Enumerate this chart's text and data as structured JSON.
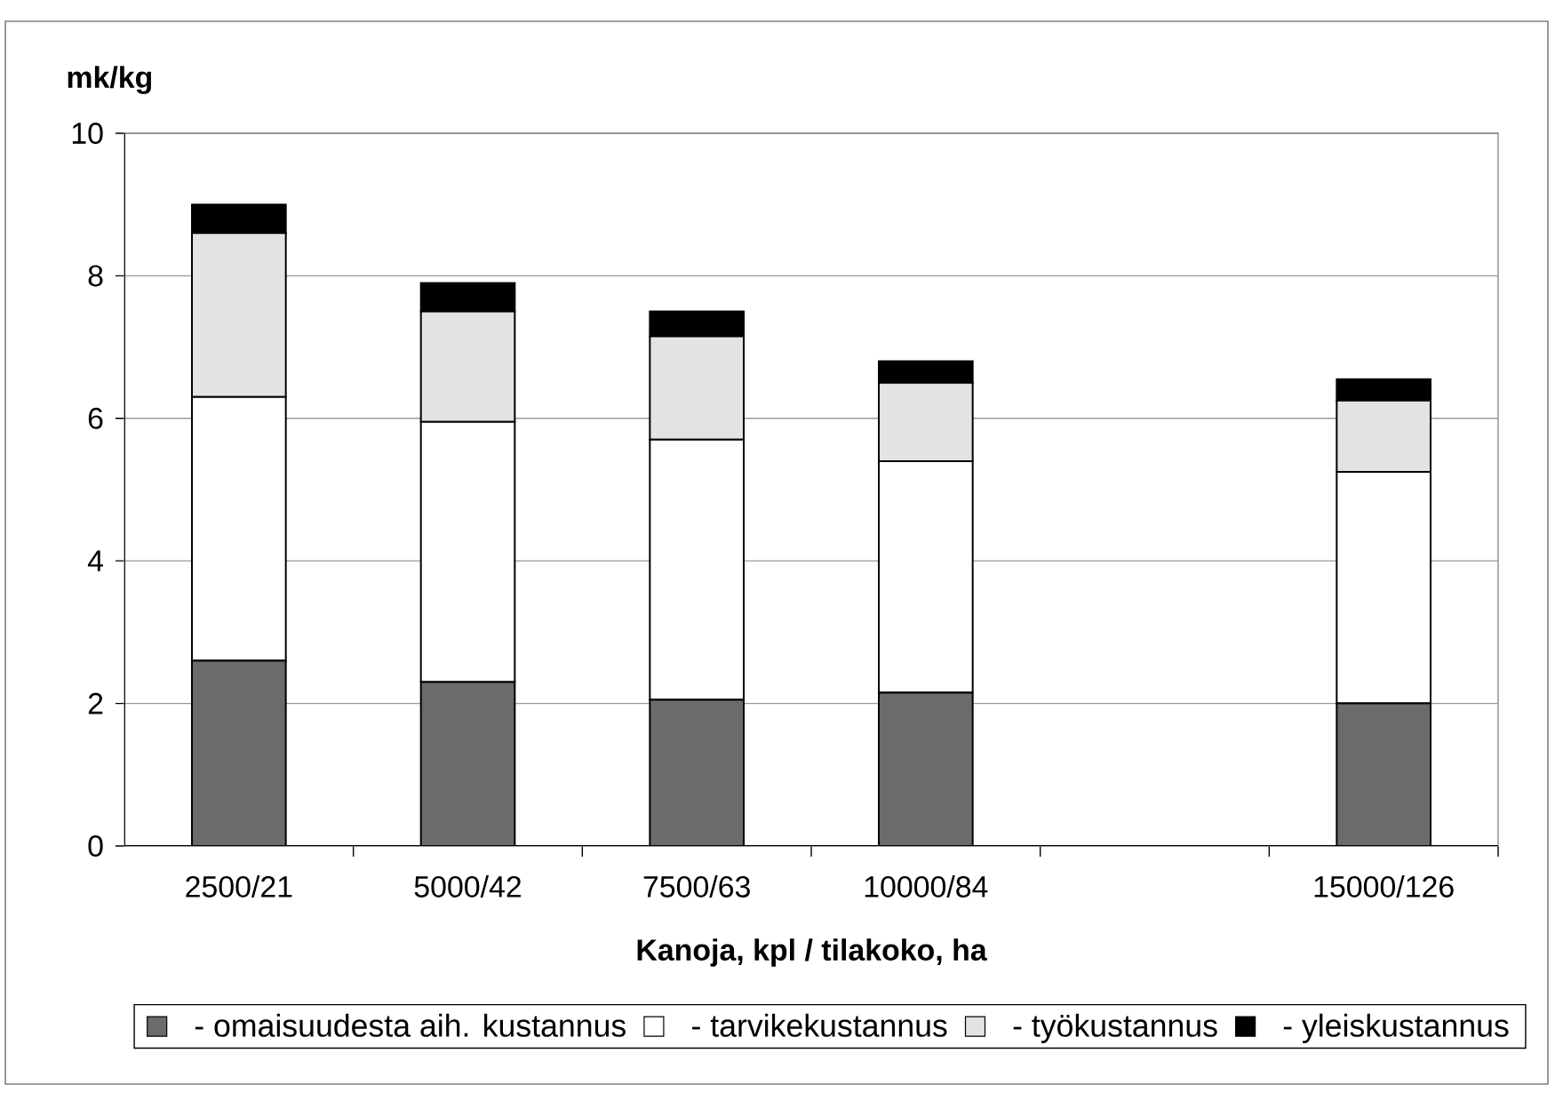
{
  "chart_data": {
    "type": "bar",
    "stacked": true,
    "ylabel": "mk/kg",
    "xlabel": "Kanoja, kpl / tilakoko, ha",
    "categories": [
      "2500/21",
      "5000/42",
      "7500/63",
      "10000/84",
      null,
      "15000/126"
    ],
    "series": [
      {
        "name": "- omaisuudesta aih. kustannus",
        "color": "#6b6b6b",
        "values": [
          2.6,
          2.3,
          2.05,
          2.15,
          null,
          2.0
        ]
      },
      {
        "name": "- tarvikekustannus",
        "color": "#ffffff",
        "values": [
          3.7,
          3.65,
          3.65,
          3.25,
          null,
          3.25
        ]
      },
      {
        "name": "- työkustannus",
        "color": "#e3e3e3",
        "values": [
          2.3,
          1.55,
          1.45,
          1.1,
          null,
          1.0
        ]
      },
      {
        "name": "- yleiskustannus",
        "color": "#000000",
        "values": [
          0.4,
          0.4,
          0.35,
          0.3,
          null,
          0.3
        ]
      }
    ],
    "ylim": [
      0,
      10
    ],
    "yticks": [
      0,
      2,
      4,
      6,
      8,
      10
    ],
    "grid": "y",
    "legend": "bottom"
  }
}
